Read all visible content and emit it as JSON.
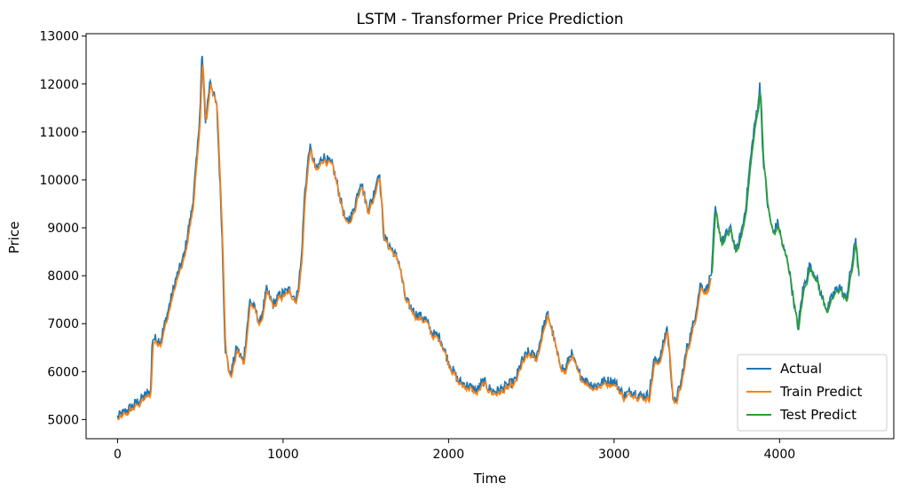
{
  "chart_data": {
    "type": "line",
    "title": "LSTM - Transformer Price Prediction",
    "xlabel": "Time",
    "ylabel": "Price",
    "xlim": [
      -190,
      4690
    ],
    "ylim": [
      4600,
      13050
    ],
    "xticks": [
      0,
      1000,
      2000,
      3000,
      4000
    ],
    "yticks": [
      5000,
      6000,
      7000,
      8000,
      9000,
      10000,
      11000,
      12000,
      13000
    ],
    "grid": false,
    "legend_position": "lower right",
    "series": [
      {
        "name": "Actual",
        "color": "#1f77b4",
        "x_range": [
          0,
          4480
        ],
        "keypoints": [
          [
            0,
            5050
          ],
          [
            60,
            5200
          ],
          [
            150,
            5450
          ],
          [
            200,
            5600
          ],
          [
            210,
            6700
          ],
          [
            260,
            6650
          ],
          [
            300,
            7200
          ],
          [
            350,
            7900
          ],
          [
            400,
            8400
          ],
          [
            450,
            9400
          ],
          [
            480,
            10500
          ],
          [
            500,
            11600
          ],
          [
            510,
            12700
          ],
          [
            530,
            11200
          ],
          [
            560,
            12100
          ],
          [
            600,
            11500
          ],
          [
            630,
            9000
          ],
          [
            650,
            6500
          ],
          [
            680,
            5900
          ],
          [
            720,
            6500
          ],
          [
            760,
            6200
          ],
          [
            800,
            7500
          ],
          [
            830,
            7300
          ],
          [
            860,
            7000
          ],
          [
            900,
            7700
          ],
          [
            940,
            7400
          ],
          [
            980,
            7600
          ],
          [
            1040,
            7700
          ],
          [
            1080,
            7500
          ],
          [
            1110,
            8300
          ],
          [
            1130,
            9700
          ],
          [
            1160,
            10700
          ],
          [
            1200,
            10200
          ],
          [
            1240,
            10500
          ],
          [
            1300,
            10300
          ],
          [
            1340,
            9700
          ],
          [
            1380,
            9100
          ],
          [
            1420,
            9300
          ],
          [
            1470,
            10000
          ],
          [
            1510,
            9400
          ],
          [
            1540,
            9600
          ],
          [
            1580,
            10200
          ],
          [
            1610,
            8800
          ],
          [
            1650,
            8600
          ],
          [
            1700,
            8300
          ],
          [
            1740,
            7500
          ],
          [
            1800,
            7200
          ],
          [
            1860,
            7100
          ],
          [
            1900,
            6800
          ],
          [
            1950,
            6700
          ],
          [
            2000,
            6200
          ],
          [
            2060,
            5800
          ],
          [
            2120,
            5700
          ],
          [
            2170,
            5600
          ],
          [
            2210,
            5800
          ],
          [
            2260,
            5600
          ],
          [
            2300,
            5600
          ],
          [
            2350,
            5700
          ],
          [
            2400,
            5800
          ],
          [
            2440,
            6200
          ],
          [
            2480,
            6400
          ],
          [
            2530,
            6300
          ],
          [
            2570,
            6900
          ],
          [
            2600,
            7200
          ],
          [
            2630,
            6800
          ],
          [
            2660,
            6300
          ],
          [
            2700,
            6000
          ],
          [
            2740,
            6400
          ],
          [
            2780,
            6000
          ],
          [
            2830,
            5800
          ],
          [
            2880,
            5700
          ],
          [
            2940,
            5800
          ],
          [
            3000,
            5800
          ],
          [
            3060,
            5500
          ],
          [
            3110,
            5600
          ],
          [
            3160,
            5500
          ],
          [
            3210,
            5500
          ],
          [
            3240,
            6200
          ],
          [
            3280,
            6300
          ],
          [
            3320,
            6950
          ],
          [
            3360,
            5300
          ],
          [
            3400,
            5700
          ],
          [
            3440,
            6500
          ],
          [
            3480,
            7000
          ],
          [
            3520,
            7800
          ],
          [
            3560,
            7700
          ],
          [
            3590,
            8100
          ],
          [
            3610,
            9400
          ],
          [
            3650,
            8700
          ],
          [
            3700,
            9000
          ],
          [
            3740,
            8500
          ],
          [
            3780,
            9100
          ],
          [
            3800,
            9600
          ],
          [
            3820,
            10300
          ],
          [
            3850,
            11200
          ],
          [
            3870,
            11500
          ],
          [
            3880,
            12100
          ],
          [
            3900,
            10500
          ],
          [
            3930,
            9400
          ],
          [
            3960,
            8900
          ],
          [
            3990,
            9100
          ],
          [
            4020,
            8600
          ],
          [
            4050,
            8300
          ],
          [
            4080,
            7600
          ],
          [
            4110,
            6900
          ],
          [
            4140,
            7700
          ],
          [
            4180,
            8200
          ],
          [
            4220,
            8000
          ],
          [
            4250,
            7600
          ],
          [
            4290,
            7300
          ],
          [
            4320,
            7600
          ],
          [
            4360,
            7800
          ],
          [
            4400,
            7500
          ],
          [
            4440,
            8300
          ],
          [
            4460,
            8800
          ],
          [
            4480,
            7900
          ]
        ]
      },
      {
        "name": "Train Predict",
        "color": "#ff7f0e",
        "x_range": [
          0,
          3590
        ]
      },
      {
        "name": "Test Predict",
        "color": "#2ca02c",
        "x_range": [
          3590,
          4480
        ]
      }
    ]
  }
}
